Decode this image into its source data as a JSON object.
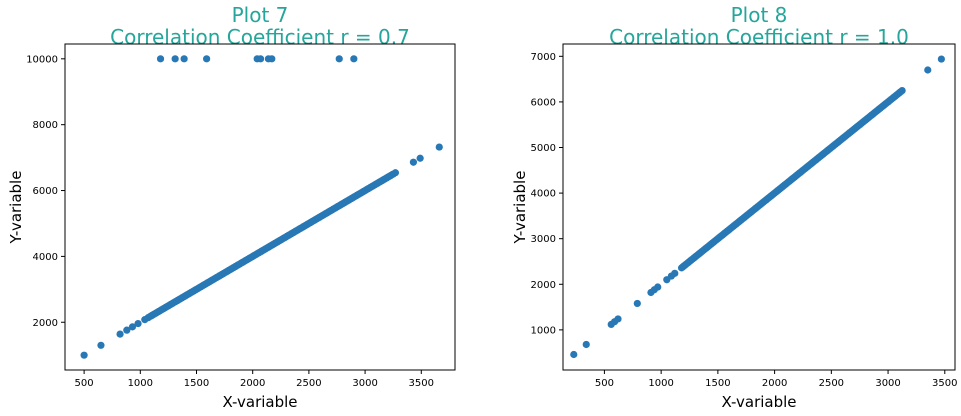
{
  "colors": {
    "title": "#26a69a",
    "point": "#2878b5",
    "axes": "#000000"
  },
  "chart_data": [
    {
      "type": "scatter",
      "title": "Plot 7",
      "subtitle": "Correlation Coefficient  r = 0.7",
      "xlabel": "X-variable",
      "ylabel": "Y-variable",
      "xlim": [
        330,
        3800
      ],
      "ylim": [
        550,
        10450
      ],
      "xticks": [
        500,
        1000,
        1500,
        2000,
        2500,
        3000,
        3500
      ],
      "yticks": [
        2000,
        4000,
        6000,
        8000,
        10000
      ],
      "grid": false,
      "line": {
        "slope": 2,
        "x_start": 1090,
        "x_end": 3250,
        "step": 12
      },
      "points": [
        [
          500,
          1000
        ],
        [
          650,
          1300
        ],
        [
          820,
          1640
        ],
        [
          880,
          1760
        ],
        [
          930,
          1860
        ],
        [
          980,
          1960
        ],
        [
          1040,
          2080
        ],
        [
          1070,
          2140
        ],
        [
          3270,
          6540
        ],
        [
          3430,
          6860
        ],
        [
          3490,
          6980
        ],
        [
          3660,
          7320
        ],
        [
          1180,
          10000
        ],
        [
          1310,
          10000
        ],
        [
          1390,
          10000
        ],
        [
          1590,
          10000
        ],
        [
          2040,
          10000
        ],
        [
          2070,
          10000
        ],
        [
          2140,
          10000
        ],
        [
          2170,
          10000
        ],
        [
          2770,
          10000
        ],
        [
          2900,
          10000
        ]
      ]
    },
    {
      "type": "scatter",
      "title": "Plot 8",
      "subtitle": "Correlation Coefficient  r = 1.0",
      "xlabel": "X-variable",
      "ylabel": "Y-variable",
      "xlim": [
        135,
        3590
      ],
      "ylim": [
        120,
        7270
      ],
      "xticks": [
        500,
        1000,
        1500,
        2000,
        2500,
        3000,
        3500
      ],
      "yticks": [
        1000,
        2000,
        3000,
        4000,
        5000,
        6000,
        7000
      ],
      "grid": false,
      "line": {
        "slope": 2,
        "x_start": 1180,
        "x_end": 3130,
        "step": 12
      },
      "points": [
        [
          230,
          460
        ],
        [
          340,
          680
        ],
        [
          560,
          1120
        ],
        [
          590,
          1180
        ],
        [
          620,
          1240
        ],
        [
          790,
          1580
        ],
        [
          910,
          1820
        ],
        [
          940,
          1880
        ],
        [
          970,
          1940
        ],
        [
          1050,
          2100
        ],
        [
          1090,
          2180
        ],
        [
          1120,
          2240
        ],
        [
          3350,
          6700
        ],
        [
          3470,
          6940
        ]
      ]
    }
  ]
}
